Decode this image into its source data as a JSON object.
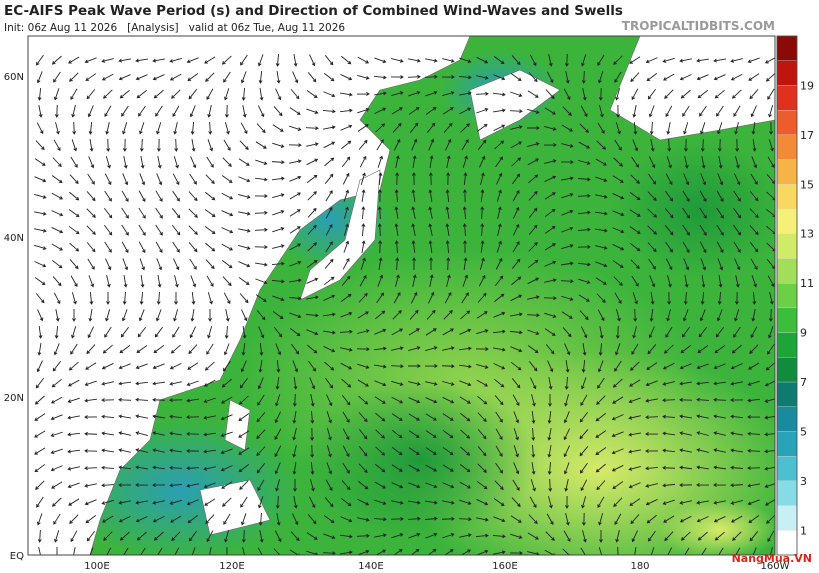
{
  "header": {
    "title": "EC-AIFS Peak Wave Period (s) and Direction of Combined Wind-Waves and Swells",
    "subtitle": "Init: 06z Aug 11 2026   [Analysis]   valid at 06z Tue, Aug 11 2026",
    "source": "TROPICALTIDBITS.COM"
  },
  "map": {
    "lat_labels": [
      "60N",
      "40N",
      "20N",
      "EQ"
    ],
    "lon_labels": [
      "100E",
      "120E",
      "140E",
      "160E",
      "180",
      "160W"
    ]
  },
  "colorbar": {
    "labels": [
      "1",
      "3",
      "5",
      "7",
      "9",
      "11",
      "13",
      "15",
      "17",
      "19"
    ],
    "colors": [
      "#ffffff",
      "#c8f0f4",
      "#86dce6",
      "#4cbfd0",
      "#2aa3b8",
      "#1a8aa0",
      "#0e7a70",
      "#108c3c",
      "#1ea53a",
      "#3cbd3c",
      "#6ccf48",
      "#a2de5a",
      "#d2ea6a",
      "#f4f07a",
      "#f8d860",
      "#f6b448",
      "#f28a38",
      "#ec5c2c",
      "#e0301e",
      "#c0140e",
      "#8a0a06"
    ]
  },
  "watermark": "NangMua.VN"
}
